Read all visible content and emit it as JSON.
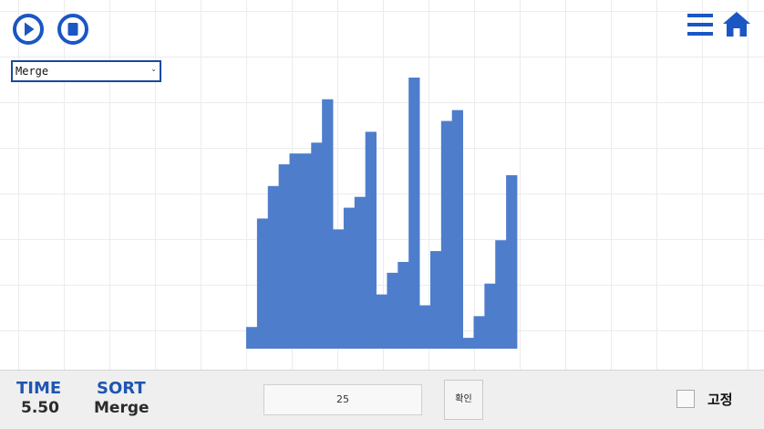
{
  "toolbar": {
    "play_icon": "play-circle-icon",
    "stop_icon": "stop-circle-icon",
    "menu_icon": "hamburger-menu-icon",
    "home_icon": "home-icon"
  },
  "algorithm_select": {
    "selected": "Merge"
  },
  "chart_data": {
    "type": "bar",
    "values": [
      2,
      12,
      15,
      17,
      18,
      18,
      19,
      23,
      11,
      13,
      14,
      20,
      5,
      7,
      8,
      25,
      4,
      9,
      21,
      22,
      1,
      3,
      6,
      10,
      16
    ],
    "ylim": [
      0,
      25
    ],
    "grid": false,
    "bar_color": "#4e7dcc"
  },
  "status": {
    "time_label": "TIME",
    "time_value": "5.50",
    "sort_label": "SORT",
    "sort_value": "Merge"
  },
  "size_input": {
    "value": "25"
  },
  "confirm_button": {
    "label": "확인"
  },
  "fix_toggle": {
    "label": "고정",
    "checked": false
  },
  "colors": {
    "accent": "#1f56b0",
    "bar": "#4e7dcc",
    "bottom_bar": "#efefef"
  }
}
